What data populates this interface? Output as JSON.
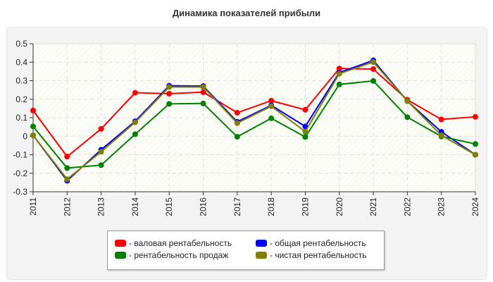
{
  "chart_data": {
    "type": "line",
    "title": "Динамика показателей прибыли",
    "x": [
      "2011",
      "2012",
      "2013",
      "2014",
      "2015",
      "2016",
      "2017",
      "2018",
      "2019",
      "2020",
      "2021",
      "2022",
      "2023",
      "2024"
    ],
    "ylim": [
      -0.3,
      0.5
    ],
    "yticks": [
      "0.5",
      "0.4",
      "0.3",
      "0.2",
      "0.1",
      "0",
      "-0.1",
      "-0.2",
      "-0.3"
    ],
    "ytick_values": [
      0.5,
      0.4,
      0.3,
      0.2,
      0.1,
      0,
      -0.1,
      -0.2,
      -0.3
    ],
    "grid": true,
    "legend_position": "bottom",
    "series": [
      {
        "name": "- валовая рентабельность",
        "color": "#ff0000",
        "values": [
          0.139,
          -0.11,
          0.04,
          0.235,
          0.23,
          0.238,
          0.127,
          0.192,
          0.143,
          0.366,
          0.363,
          0.197,
          0.091,
          0.105
        ]
      },
      {
        "name": "- общая рентабельность",
        "color": "#0000ff",
        "values": [
          0.005,
          -0.24,
          -0.073,
          0.081,
          0.273,
          0.271,
          0.078,
          0.167,
          0.053,
          0.344,
          0.41,
          0.19,
          0.024,
          -0.1
        ]
      },
      {
        "name": "- рентабельность продаж",
        "color": "#008000",
        "values": [
          0.053,
          -0.172,
          -0.156,
          0.011,
          0.175,
          0.177,
          -0.003,
          0.097,
          -0.004,
          0.28,
          0.299,
          0.103,
          -0.001,
          -0.042
        ]
      },
      {
        "name": "- чистая рентабельность",
        "color": "#808000",
        "values": [
          0.005,
          -0.232,
          -0.084,
          0.075,
          0.266,
          0.266,
          0.071,
          0.162,
          0.025,
          0.338,
          0.401,
          0.19,
          0.005,
          -0.1
        ]
      }
    ]
  }
}
